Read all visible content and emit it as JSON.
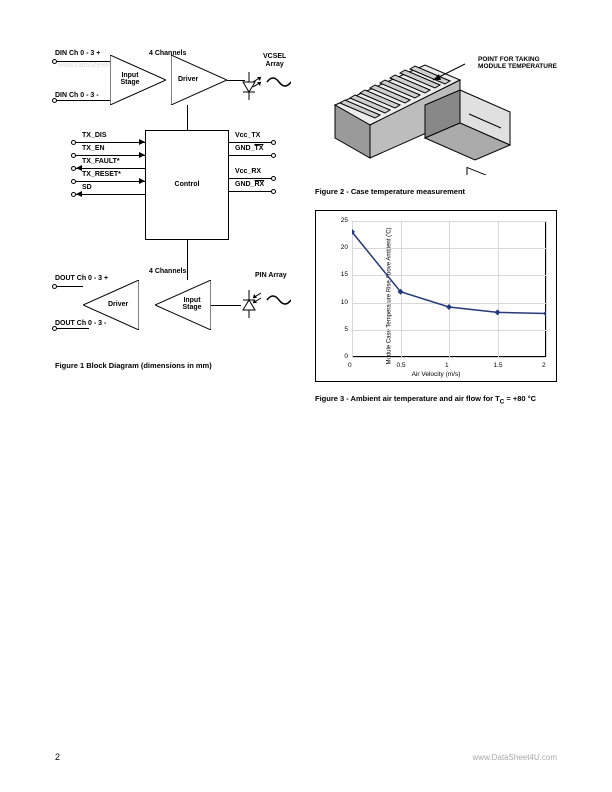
{
  "page_number": "2",
  "footer_watermark": "www.DataSheet4U.com",
  "top_watermark": "www.DataSheet4U.com",
  "figure1": {
    "caption": "Figure 1 Block Diagram (dimensions in mm)",
    "top_channel_label": "4 Channels",
    "bottom_channel_label": "4 Channels",
    "input_stage": "Input\nStage",
    "driver": "Driver",
    "control": "Control",
    "vcsel": "VCSEL\nArray",
    "pin_array": "PIN Array",
    "din_plus": "DIN Ch 0 - 3 +",
    "din_minus": "DIN Ch 0 - 3 -",
    "dout_plus": "DOUT Ch 0 - 3 +",
    "dout_minus": "DOUT Ch 0 - 3 -",
    "tx_dis": "TX_DIS",
    "tx_en": "TX_EN",
    "tx_fault": "TX_FAULT*",
    "tx_reset": "TX_RESET*",
    "sd": "SD",
    "vcc_tx": "Vcc_TX",
    "gnd_tx_prefix": "GND_",
    "gnd_tx_over": "TX",
    "vcc_rx": "Vcc_RX",
    "gnd_rx_prefix": "GND_",
    "gnd_rx_over": "RX"
  },
  "figure2": {
    "caption": "Figure 2 - Case temperature measurement",
    "annotation_line1": "POINT FOR TAKING",
    "annotation_line2": "MODULE TEMPERATURE"
  },
  "figure3": {
    "caption_prefix": "Figure 3 - Ambient air temperature and air flow for T",
    "caption_sub": "C",
    "caption_suffix": " = +80 °C",
    "ylabel": "Module Case Temperature Rise Above Ambient ('C)",
    "xlabel": "Air Velocity (m/s)",
    "yticks": [
      0,
      5,
      10,
      15,
      20,
      25
    ],
    "xticks": [
      0,
      0.5,
      1,
      1.5,
      2
    ],
    "line_color": "#263a7a",
    "grid_color": "#d8d8d8",
    "data": [
      {
        "x": 0,
        "y": 23
      },
      {
        "x": 0.5,
        "y": 12
      },
      {
        "x": 1,
        "y": 9.2
      },
      {
        "x": 1.5,
        "y": 8.2
      },
      {
        "x": 2,
        "y": 8
      }
    ]
  }
}
